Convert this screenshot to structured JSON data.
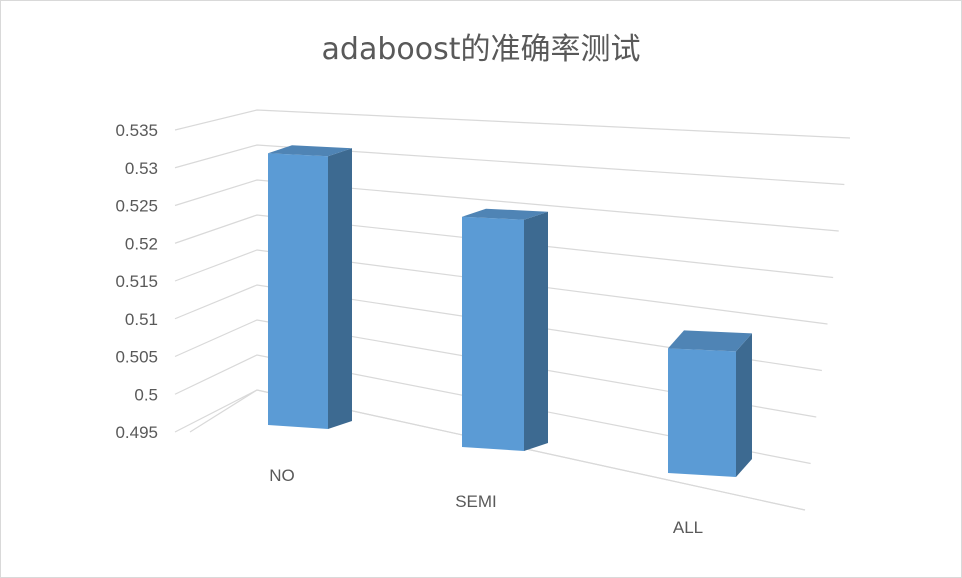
{
  "chart_data": {
    "type": "bar",
    "title": "adaboost的准确率测试",
    "categories": [
      "NO",
      "SEMI",
      "ALL"
    ],
    "values": [
      0.531,
      0.5255,
      0.5115
    ],
    "ylim": [
      0.495,
      0.535
    ],
    "yticks": [
      "0.535",
      "0.53",
      "0.525",
      "0.52",
      "0.515",
      "0.51",
      "0.505",
      "0.5",
      "0.495"
    ],
    "grid": true,
    "legend": "none",
    "style": "3d-column",
    "colors": {
      "bar_front": "#5b9bd5",
      "bar_side": "#3d6a91",
      "bar_top": "#4f84b5",
      "grid": "#d9d9d9",
      "text": "#595959"
    }
  }
}
